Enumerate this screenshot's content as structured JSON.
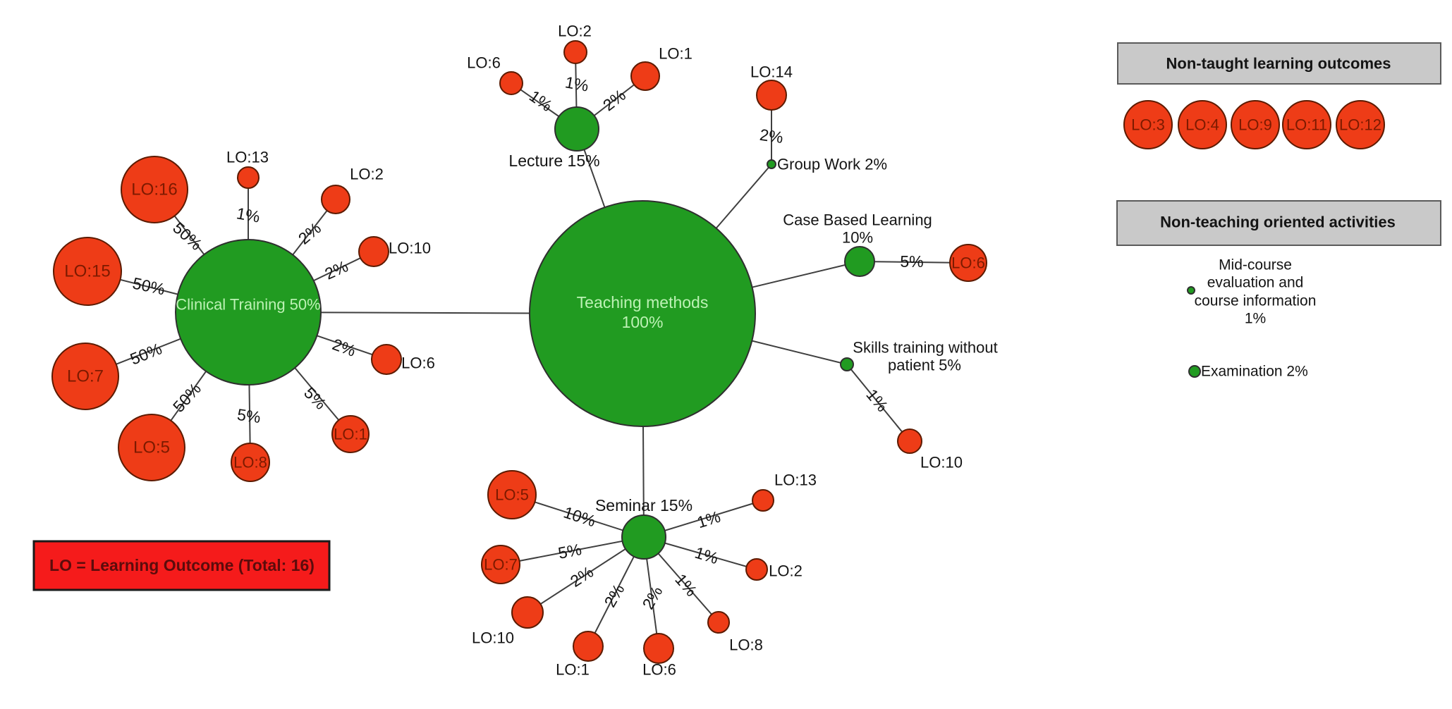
{
  "legend_note": {
    "text": "LO = Learning Outcome (Total: 16)"
  },
  "center_node": {
    "line1": "Teaching methods",
    "line2": "100%"
  },
  "clusters": {
    "clinical": {
      "label": "Clinical Training 50%",
      "satellites": [
        {
          "lo": "LO:16",
          "pct": "50%"
        },
        {
          "lo": "LO:13",
          "pct": "1%"
        },
        {
          "lo": "LO:2",
          "pct": "2%"
        },
        {
          "lo": "LO:10",
          "pct": "2%"
        },
        {
          "lo": "LO:15",
          "pct": "50%"
        },
        {
          "lo": "LO:6",
          "pct": "2%"
        },
        {
          "lo": "LO:7",
          "pct": "50%"
        },
        {
          "lo": "LO:5",
          "pct": "50%"
        },
        {
          "lo": "LO:8",
          "pct": "5%"
        },
        {
          "lo": "LO:1",
          "pct": "5%"
        }
      ]
    },
    "lecture": {
      "label": "Lecture 15%",
      "satellites": [
        {
          "lo": "LO:6",
          "pct": "1%"
        },
        {
          "lo": "LO:2",
          "pct": "1%"
        },
        {
          "lo": "LO:1",
          "pct": "2%"
        }
      ]
    },
    "group_work": {
      "label": "Group Work 2%",
      "satellites": [
        {
          "lo": "LO:14",
          "pct": "2%"
        }
      ]
    },
    "case_based": {
      "label_line1": "Case Based Learning",
      "label_line2": "10%",
      "satellites": [
        {
          "lo": "LO:6",
          "pct": "5%"
        }
      ]
    },
    "skills": {
      "label_line1": "Skills training without",
      "label_line2": "patient 5%",
      "satellites": [
        {
          "lo": "LO:10",
          "pct": "1%"
        }
      ]
    },
    "seminar": {
      "label": "Seminar 15%",
      "satellites": [
        {
          "lo": "LO:5",
          "pct": "10%"
        },
        {
          "lo": "LO:7",
          "pct": "5%"
        },
        {
          "lo": "LO:10",
          "pct": "2%"
        },
        {
          "lo": "LO:1",
          "pct": "2%"
        },
        {
          "lo": "LO:6",
          "pct": "2%"
        },
        {
          "lo": "LO:8",
          "pct": "1%"
        },
        {
          "lo": "LO:2",
          "pct": "1%"
        },
        {
          "lo": "LO:13",
          "pct": "1%"
        }
      ]
    }
  },
  "panels": {
    "non_taught": {
      "title": "Non-taught learning outcomes",
      "items": [
        "LO:3",
        "LO:4",
        "LO:9",
        "LO:11",
        "LO:12"
      ]
    },
    "non_teaching": {
      "title": "Non-teaching oriented activities",
      "midcourse": {
        "line1": "Mid-course",
        "line2": "evaluation and",
        "line3": "course information",
        "line4": "1%"
      },
      "examination": "Examination 2%"
    }
  },
  "colors": {
    "taught_green": "#219b21",
    "green_stroke": "#2f2f2f",
    "outcome_red": "#ee3c17",
    "red_stroke": "#5c1a00",
    "edge_gray": "#3f3f3f",
    "node_text_light": "#bdf2b5",
    "outcome_text_dark": "#7c1a00",
    "label_black": "#141414",
    "header_gray": "#c9c9c9",
    "header_stroke": "#5a5a5a",
    "legend_red": "#f51b1b",
    "legend_text": "#5c0c0c"
  }
}
